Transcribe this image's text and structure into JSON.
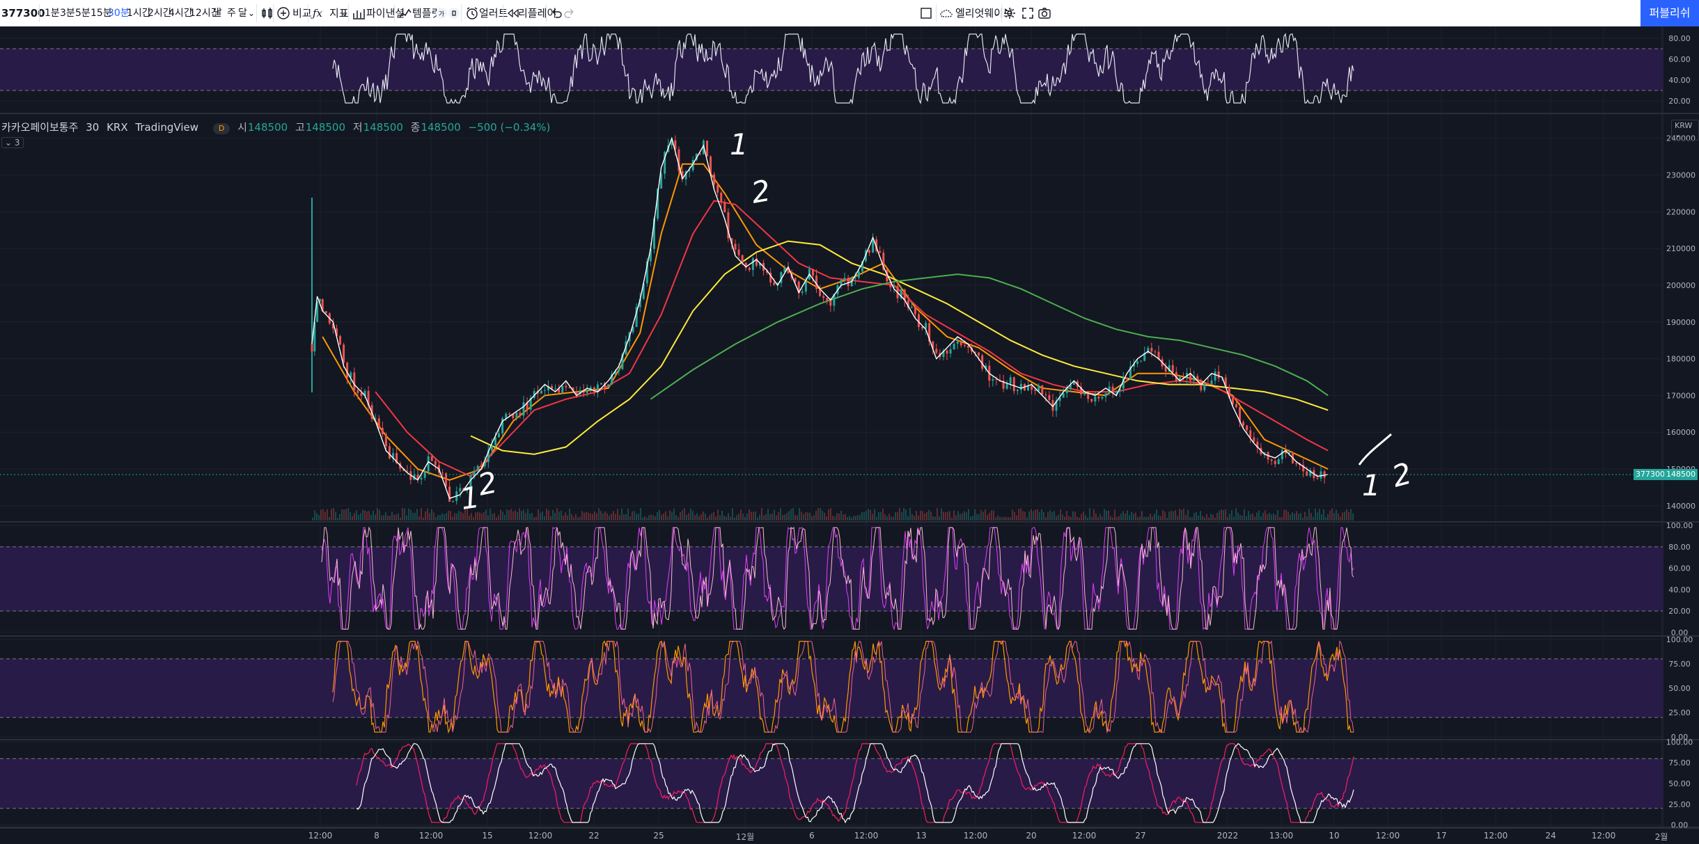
{
  "toolbar": {
    "symbol": "377300",
    "intervals": [
      "1분",
      "3분",
      "5분",
      "15분",
      "30분",
      "1시간",
      "2시간",
      "4시간",
      "12시간",
      "날",
      "주",
      "달"
    ],
    "active_interval": "30분",
    "compare": "비교",
    "indicators": "지표",
    "financials": "파이낸셜",
    "templates": "템플릿",
    "alert": "얼러트",
    "replay": "리플레이",
    "layout_name": "엘리엇웨이브",
    "publish": "퍼블리쉬",
    "accent": "#2962ff"
  },
  "legend": {
    "name": "카카오페이보통주",
    "interval": "30",
    "exchange": "KRX",
    "source": "TradingView",
    "badge": "D",
    "o_label": "시",
    "o": "148500",
    "h_label": "고",
    "h": "148500",
    "l_label": "저",
    "l": "148500",
    "c_label": "종",
    "c": "148500",
    "change": "−500 (−0.34%)",
    "collapsed_count": "3",
    "currency": "KRW"
  },
  "price_labels": {
    "symbol": "377300",
    "last": "148500",
    "color": "#26a69a"
  },
  "annotations": [
    "1",
    "2",
    "1",
    "2",
    "1",
    "2"
  ],
  "axes": {
    "rsi_top": [
      "80.00",
      "60.00",
      "40.00",
      "20.00"
    ],
    "price": [
      "240000",
      "230000",
      "220000",
      "210000",
      "200000",
      "190000",
      "180000",
      "170000",
      "160000",
      "150000",
      "140000"
    ],
    "osc1": [
      "100.00",
      "80.00",
      "60.00",
      "40.00",
      "20.00",
      "0.00"
    ],
    "osc2": [
      "100.00",
      "75.00",
      "50.00",
      "25.00",
      "0.00"
    ],
    "osc3": [
      "100.00",
      "75.00",
      "50.00",
      "25.00",
      "0.00"
    ],
    "time": [
      "12:00",
      "8",
      "12:00",
      "15",
      "12:00",
      "22",
      "25",
      "12월",
      "6",
      "12:00",
      "13",
      "12:00",
      "20",
      "12:00",
      "27",
      "2022",
      "13:00",
      "10",
      "12:00",
      "17",
      "12:00",
      "24",
      "12:00",
      "2월"
    ]
  },
  "chart_data": {
    "type": "line",
    "title": "카카오페이보통주 · 30 · KRX",
    "price_range": [
      140000,
      240000
    ],
    "close_path": [
      [
        0,
        184000
      ],
      [
        1,
        197000
      ],
      [
        2,
        193000
      ],
      [
        4,
        190000
      ],
      [
        6,
        178000
      ],
      [
        8,
        173000
      ],
      [
        10,
        170000
      ],
      [
        12,
        163000
      ],
      [
        14,
        155000
      ],
      [
        16,
        152000
      ],
      [
        18,
        149000
      ],
      [
        20,
        147000
      ],
      [
        22,
        152000
      ],
      [
        24,
        150000
      ],
      [
        26,
        142000
      ],
      [
        28,
        143000
      ],
      [
        30,
        147000
      ],
      [
        32,
        150000
      ],
      [
        34,
        157000
      ],
      [
        36,
        163000
      ],
      [
        38,
        165000
      ],
      [
        40,
        167000
      ],
      [
        42,
        170000
      ],
      [
        44,
        173000
      ],
      [
        46,
        171000
      ],
      [
        48,
        174000
      ],
      [
        50,
        170000
      ],
      [
        52,
        172000
      ],
      [
        54,
        171000
      ],
      [
        56,
        174000
      ],
      [
        58,
        178000
      ],
      [
        60,
        186000
      ],
      [
        62,
        196000
      ],
      [
        64,
        210000
      ],
      [
        66,
        232000
      ],
      [
        68,
        240000
      ],
      [
        70,
        229000
      ],
      [
        72,
        233000
      ],
      [
        74,
        238000
      ],
      [
        76,
        226000
      ],
      [
        78,
        218000
      ],
      [
        80,
        208000
      ],
      [
        82,
        205000
      ],
      [
        84,
        207000
      ],
      [
        86,
        204000
      ],
      [
        88,
        200000
      ],
      [
        90,
        205000
      ],
      [
        92,
        198000
      ],
      [
        94,
        203000
      ],
      [
        96,
        199000
      ],
      [
        98,
        196000
      ],
      [
        100,
        200000
      ],
      [
        102,
        201000
      ],
      [
        104,
        206000
      ],
      [
        106,
        213000
      ],
      [
        108,
        205000
      ],
      [
        110,
        199000
      ],
      [
        112,
        196000
      ],
      [
        114,
        191000
      ],
      [
        116,
        188000
      ],
      [
        118,
        180000
      ],
      [
        120,
        183000
      ],
      [
        122,
        186000
      ],
      [
        124,
        184000
      ],
      [
        126,
        180000
      ],
      [
        128,
        176000
      ],
      [
        130,
        174000
      ],
      [
        132,
        173000
      ],
      [
        134,
        172000
      ],
      [
        136,
        173000
      ],
      [
        138,
        170000
      ],
      [
        140,
        167000
      ],
      [
        142,
        171000
      ],
      [
        144,
        174000
      ],
      [
        146,
        171000
      ],
      [
        148,
        170000
      ],
      [
        150,
        172000
      ],
      [
        152,
        170000
      ],
      [
        154,
        176000
      ],
      [
        156,
        180000
      ],
      [
        158,
        182000
      ],
      [
        160,
        180000
      ],
      [
        162,
        177000
      ],
      [
        164,
        174000
      ],
      [
        166,
        176000
      ],
      [
        168,
        173000
      ],
      [
        170,
        176000
      ],
      [
        172,
        175000
      ],
      [
        174,
        167000
      ],
      [
        176,
        161000
      ],
      [
        178,
        157000
      ],
      [
        180,
        154000
      ],
      [
        182,
        153000
      ],
      [
        184,
        155000
      ],
      [
        186,
        152000
      ],
      [
        188,
        150000
      ],
      [
        190,
        148000
      ],
      [
        192,
        148500
      ]
    ],
    "series": [
      {
        "name": "",
        "color": "#ff9800",
        "points": [
          [
            2,
            186000
          ],
          [
            8,
            171000
          ],
          [
            14,
            159000
          ],
          [
            20,
            150000
          ],
          [
            26,
            147000
          ],
          [
            32,
            150000
          ],
          [
            38,
            163000
          ],
          [
            44,
            170000
          ],
          [
            50,
            171000
          ],
          [
            56,
            172000
          ],
          [
            62,
            187000
          ],
          [
            66,
            214000
          ],
          [
            70,
            233000
          ],
          [
            74,
            233000
          ],
          [
            78,
            225000
          ],
          [
            84,
            211000
          ],
          [
            90,
            204000
          ],
          [
            96,
            199000
          ],
          [
            102,
            202000
          ],
          [
            108,
            206000
          ],
          [
            114,
            194000
          ],
          [
            120,
            186000
          ],
          [
            126,
            183000
          ],
          [
            132,
            177000
          ],
          [
            138,
            172000
          ],
          [
            144,
            171000
          ],
          [
            150,
            170000
          ],
          [
            156,
            176000
          ],
          [
            162,
            176000
          ],
          [
            168,
            174000
          ],
          [
            174,
            170000
          ],
          [
            180,
            158000
          ],
          [
            186,
            154000
          ],
          [
            192,
            150000
          ]
        ]
      },
      {
        "name": "",
        "color": "#f23645",
        "points": [
          [
            12,
            171000
          ],
          [
            18,
            160000
          ],
          [
            24,
            152000
          ],
          [
            30,
            148000
          ],
          [
            36,
            157000
          ],
          [
            42,
            166000
          ],
          [
            48,
            169000
          ],
          [
            54,
            171000
          ],
          [
            60,
            176000
          ],
          [
            66,
            192000
          ],
          [
            72,
            214000
          ],
          [
            76,
            223000
          ],
          [
            80,
            222000
          ],
          [
            86,
            214000
          ],
          [
            92,
            206000
          ],
          [
            98,
            202000
          ],
          [
            104,
            201000
          ],
          [
            110,
            200000
          ],
          [
            116,
            192000
          ],
          [
            122,
            187000
          ],
          [
            128,
            182000
          ],
          [
            134,
            176000
          ],
          [
            140,
            173000
          ],
          [
            146,
            171000
          ],
          [
            152,
            171000
          ],
          [
            158,
            173000
          ],
          [
            164,
            174000
          ],
          [
            170,
            173000
          ],
          [
            176,
            168000
          ],
          [
            182,
            163000
          ],
          [
            188,
            158000
          ],
          [
            192,
            155000
          ]
        ]
      },
      {
        "name": "",
        "color": "#ffeb3b",
        "points": [
          [
            30,
            159000
          ],
          [
            36,
            155000
          ],
          [
            42,
            154000
          ],
          [
            48,
            156000
          ],
          [
            54,
            163000
          ],
          [
            60,
            169000
          ],
          [
            66,
            178000
          ],
          [
            72,
            193000
          ],
          [
            78,
            203000
          ],
          [
            84,
            209000
          ],
          [
            90,
            212000
          ],
          [
            96,
            211000
          ],
          [
            102,
            206000
          ],
          [
            108,
            203000
          ],
          [
            114,
            199000
          ],
          [
            120,
            195000
          ],
          [
            126,
            190000
          ],
          [
            132,
            185000
          ],
          [
            138,
            181000
          ],
          [
            144,
            178000
          ],
          [
            150,
            176000
          ],
          [
            156,
            174000
          ],
          [
            162,
            173000
          ],
          [
            168,
            173000
          ],
          [
            174,
            172000
          ],
          [
            180,
            171000
          ],
          [
            186,
            169000
          ],
          [
            192,
            166000
          ]
        ]
      },
      {
        "name": "",
        "color": "#4caf50",
        "points": [
          [
            64,
            169000
          ],
          [
            72,
            177000
          ],
          [
            80,
            184000
          ],
          [
            88,
            190000
          ],
          [
            96,
            195000
          ],
          [
            104,
            199000
          ],
          [
            110,
            201000
          ],
          [
            116,
            202000
          ],
          [
            122,
            203000
          ],
          [
            128,
            202000
          ],
          [
            134,
            199000
          ],
          [
            140,
            195000
          ],
          [
            146,
            191000
          ],
          [
            152,
            188000
          ],
          [
            158,
            186000
          ],
          [
            164,
            185000
          ],
          [
            170,
            183000
          ],
          [
            176,
            181000
          ],
          [
            182,
            178000
          ],
          [
            188,
            174000
          ],
          [
            192,
            170000
          ]
        ]
      }
    ]
  }
}
